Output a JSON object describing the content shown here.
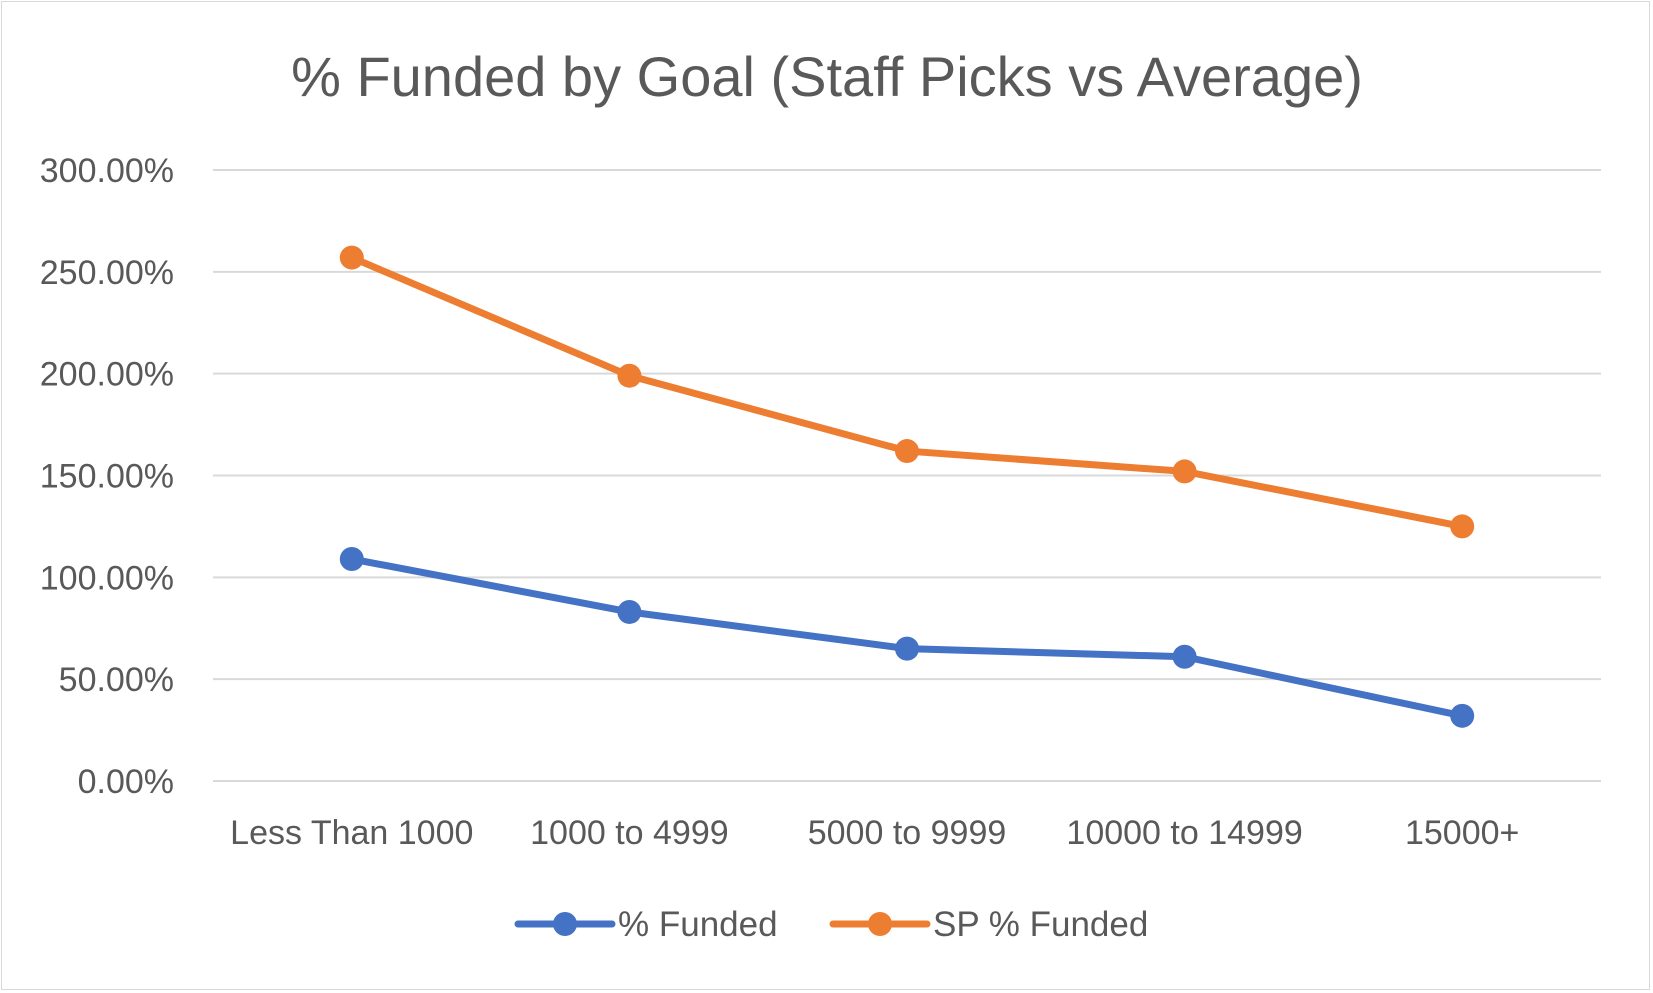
{
  "chart_data": {
    "type": "line",
    "title": "% Funded by Goal (Staff Picks vs Average)",
    "xlabel": "",
    "ylabel": "",
    "categories": [
      "Less Than 1000",
      "1000 to 4999",
      "5000 to 9999",
      "10000 to 14999",
      "15000+"
    ],
    "y_ticks": [
      "0.00%",
      "50.00%",
      "100.00%",
      "150.00%",
      "200.00%",
      "250.00%",
      "300.00%"
    ],
    "ylim": [
      0,
      300
    ],
    "grid": "horizontal",
    "legend_position": "bottom",
    "series": [
      {
        "name": "% Funded",
        "color": "#4472c4",
        "values": [
          109,
          83,
          65,
          61,
          32
        ]
      },
      {
        "name": "SP % Funded",
        "color": "#ed7d31",
        "values": [
          257,
          199,
          162,
          152,
          125
        ]
      }
    ]
  },
  "colors": {
    "gridline": "#d9d9d9",
    "text": "#595959",
    "border": "#d9d9d9"
  }
}
